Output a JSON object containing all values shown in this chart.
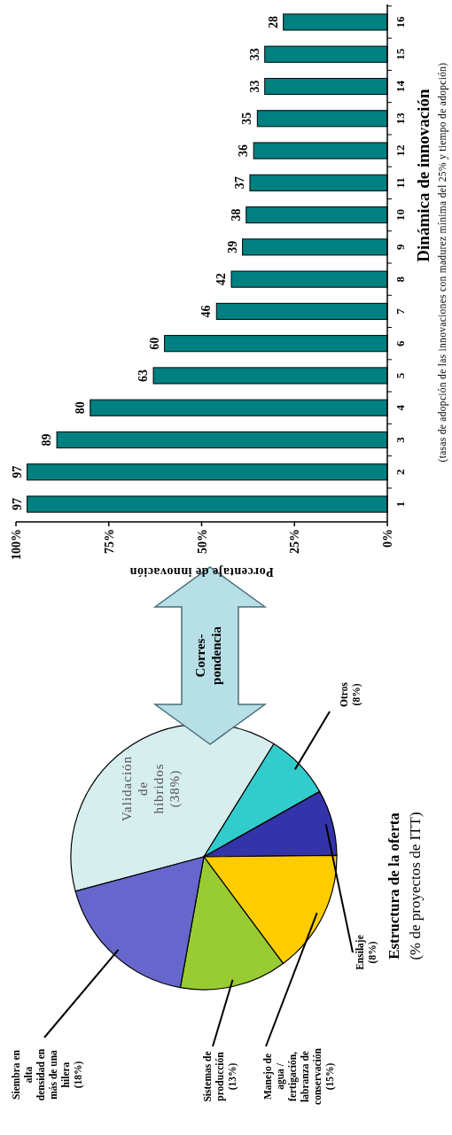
{
  "chart_data": [
    {
      "type": "pie",
      "title": "Estructura de la oferta",
      "subtitle": "(% de proyectos de ITT)",
      "categories": [
        "Validación de híbridos",
        "Otros",
        "Ensilaje",
        "Manejo de agua / fertigación, labranza de conservación",
        "Sistemas de producción",
        "Siembra en alta densidad en más de una hilera"
      ],
      "values": [
        38,
        8,
        8,
        15,
        13,
        18
      ],
      "value_labels": [
        "(38%)",
        "(8%)",
        "(8%)",
        "(15%)",
        "(13%)",
        "(18%)"
      ],
      "colors": [
        "#d6eeee",
        "#33cccc",
        "#3333aa",
        "#ffcc00",
        "#99cc33",
        "#6666cc"
      ],
      "annotations": [
        "Corres-pondencia"
      ]
    },
    {
      "type": "bar",
      "orientation": "horizontal",
      "ylabel": "Dinámica de innovación",
      "annotations": [
        "(tasas de adopción de las innovaciones con madurez mínima del 25% y tiempo de adopción)"
      ],
      "xlabel": "Porcentaje de innovación",
      "categories": [
        "16",
        "15",
        "14",
        "13",
        "12",
        "11",
        "10",
        "9",
        "8",
        "7",
        "6",
        "5",
        "4",
        "3",
        "2",
        "1"
      ],
      "values": [
        28,
        33,
        33,
        35,
        36,
        37,
        38,
        39,
        42,
        46,
        60,
        63,
        80,
        89,
        97,
        97
      ],
      "color": "#008080",
      "data_labels": true,
      "xlim": [
        100,
        0
      ],
      "xticks": [
        {
          "value": 100,
          "label": "100%"
        },
        {
          "value": 75,
          "label": "75%"
        },
        {
          "value": 50,
          "label": "50%"
        },
        {
          "value": 25,
          "label": "25%"
        },
        {
          "value": 0,
          "label": "0%"
        }
      ]
    }
  ]
}
